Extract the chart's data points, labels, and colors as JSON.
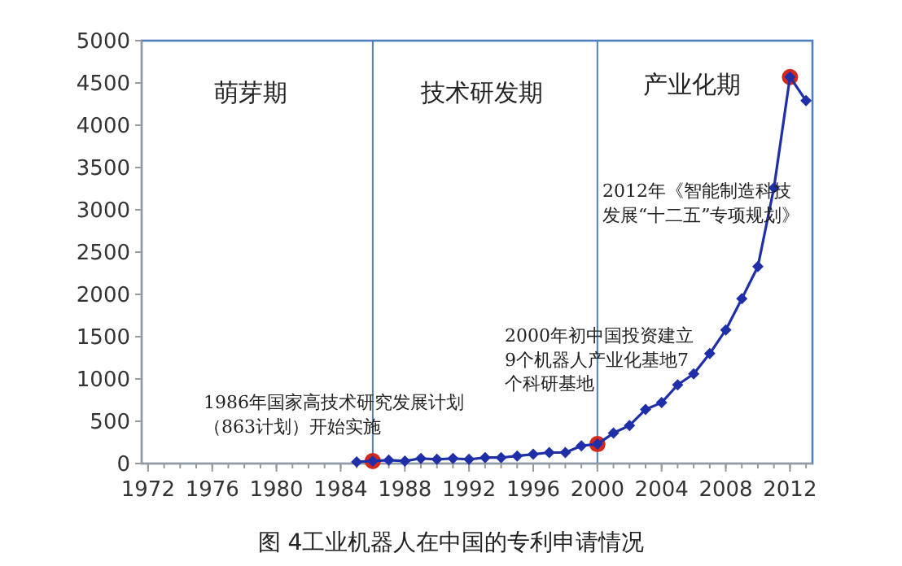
{
  "chart_data": {
    "type": "line",
    "title": "图 4工业机器人在中国的专利申请情况",
    "series": [
      {
        "color": "#1f2fa8",
        "marker": "diamond",
        "x": [
          1985,
          1986,
          1987,
          1988,
          1989,
          1990,
          1991,
          1992,
          1993,
          1994,
          1995,
          1996,
          1997,
          1998,
          1999,
          2000,
          2001,
          2002,
          2003,
          2004,
          2005,
          2006,
          2007,
          2008,
          2009,
          2010,
          2011,
          2012,
          2013
        ],
        "values": [
          20,
          30,
          40,
          30,
          60,
          50,
          60,
          50,
          70,
          70,
          90,
          110,
          130,
          130,
          210,
          230,
          360,
          450,
          640,
          720,
          930,
          1060,
          1300,
          1580,
          1950,
          2330,
          3260,
          4570,
          4290
        ]
      },
      {
        "type": "scatter",
        "color": "#d42a1e",
        "marker": "circle",
        "x": [
          1986,
          2000,
          2012
        ],
        "values": [
          30,
          230,
          4570
        ]
      }
    ],
    "xlim": [
      1971.6,
      2013.4
    ],
    "xticks": [
      1972,
      1976,
      1980,
      1984,
      1988,
      1992,
      1996,
      2000,
      2004,
      2008,
      2012
    ],
    "ylim": [
      0,
      5000
    ],
    "yticks": [
      0,
      500,
      1000,
      1500,
      2000,
      2500,
      3000,
      3500,
      4000,
      4500,
      5000
    ],
    "ref_lines": [
      {
        "axis": "x",
        "value": 1986
      },
      {
        "axis": "x",
        "value": 2000
      }
    ],
    "annotations": [
      "萌芽期",
      "技术研发期",
      "产业化期",
      "1986年国家高技术研究发展计划（863计划）开始实施",
      "2000年初中国投资建立9个机器人产业化基地7个科研基地",
      "2012年《智能制造科技发展“十二五”专项规划》"
    ]
  }
}
